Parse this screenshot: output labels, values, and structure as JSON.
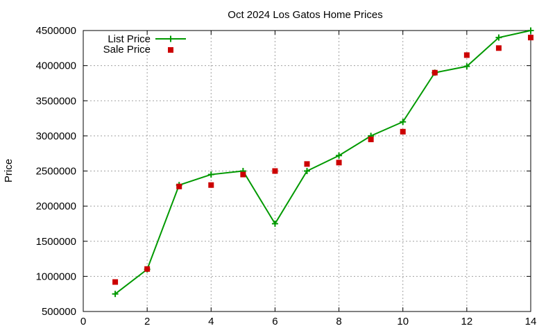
{
  "chart_data": {
    "type": "line",
    "title": "Oct 2024 Los Gatos Home Prices",
    "xlabel": "",
    "ylabel": "Price",
    "xlim": [
      0,
      14
    ],
    "ylim": [
      500000,
      4500000
    ],
    "xticks": [
      0,
      2,
      4,
      6,
      8,
      10,
      12,
      14
    ],
    "xtick_labels": [
      "0",
      "2",
      "4",
      "6",
      "8",
      "10",
      "12",
      "14"
    ],
    "yticks": [
      500000,
      1000000,
      1500000,
      2000000,
      2500000,
      3000000,
      3500000,
      4000000,
      4500000
    ],
    "ytick_labels": [
      "500000",
      "1000000",
      "1500000",
      "2000000",
      "2500000",
      "3000000",
      "3500000",
      "4000000",
      "4500000"
    ],
    "grid": true,
    "legend_position": "top-left",
    "series": [
      {
        "name": "List Price",
        "style": "line with plus markers",
        "color": "#009900",
        "x": [
          1,
          2,
          3,
          4,
          5,
          6,
          7,
          8,
          9,
          10,
          11,
          12,
          13,
          14
        ],
        "y": [
          750000,
          1100000,
          2300000,
          2450000,
          2500000,
          1750000,
          2500000,
          2720000,
          3000000,
          3200000,
          3900000,
          3990000,
          4400000,
          4500000
        ]
      },
      {
        "name": "Sale Price",
        "style": "square markers",
        "color": "#cc0000",
        "x": [
          1,
          2,
          3,
          4,
          5,
          6,
          7,
          8,
          9,
          10,
          11,
          12,
          13,
          14
        ],
        "y": [
          920000,
          1105000,
          2280000,
          2300000,
          2450000,
          2500000,
          2600000,
          2620000,
          2950000,
          3060000,
          3900000,
          4150000,
          4250000,
          4400000
        ]
      }
    ]
  }
}
